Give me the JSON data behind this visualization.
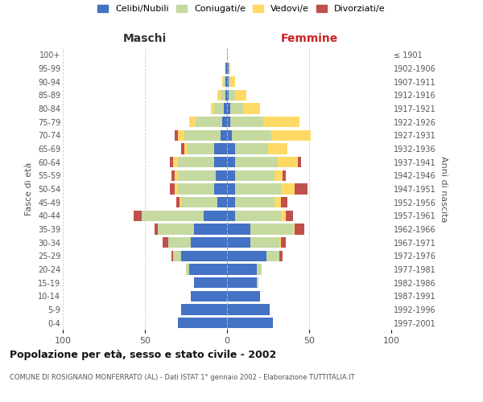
{
  "age_groups": [
    "0-4",
    "5-9",
    "10-14",
    "15-19",
    "20-24",
    "25-29",
    "30-34",
    "35-39",
    "40-44",
    "45-49",
    "50-54",
    "55-59",
    "60-64",
    "65-69",
    "70-74",
    "75-79",
    "80-84",
    "85-89",
    "90-94",
    "95-99",
    "100+"
  ],
  "birth_years": [
    "1997-2001",
    "1992-1996",
    "1987-1991",
    "1982-1986",
    "1977-1981",
    "1972-1976",
    "1967-1971",
    "1962-1966",
    "1957-1961",
    "1952-1956",
    "1947-1951",
    "1942-1946",
    "1937-1941",
    "1932-1936",
    "1927-1931",
    "1922-1926",
    "1917-1921",
    "1912-1916",
    "1907-1911",
    "1902-1906",
    "≤ 1901"
  ],
  "maschi": {
    "celibi": [
      30,
      28,
      22,
      20,
      23,
      28,
      22,
      20,
      14,
      6,
      8,
      7,
      8,
      8,
      4,
      3,
      2,
      1,
      1,
      1,
      0
    ],
    "coniugati": [
      0,
      0,
      0,
      0,
      2,
      5,
      14,
      22,
      38,
      22,
      22,
      23,
      22,
      16,
      22,
      16,
      6,
      3,
      1,
      0,
      0
    ],
    "vedovi": [
      0,
      0,
      0,
      0,
      0,
      0,
      0,
      0,
      0,
      1,
      2,
      2,
      3,
      2,
      4,
      4,
      2,
      2,
      1,
      0,
      0
    ],
    "divorziati": [
      0,
      0,
      0,
      0,
      0,
      1,
      3,
      2,
      5,
      2,
      3,
      2,
      2,
      2,
      2,
      0,
      0,
      0,
      0,
      0,
      0
    ]
  },
  "femmine": {
    "nubili": [
      28,
      26,
      20,
      18,
      18,
      24,
      14,
      14,
      5,
      5,
      5,
      5,
      5,
      5,
      3,
      2,
      2,
      1,
      1,
      1,
      0
    ],
    "coniugate": [
      0,
      0,
      0,
      1,
      3,
      8,
      18,
      26,
      28,
      24,
      28,
      24,
      26,
      20,
      24,
      20,
      8,
      4,
      1,
      0,
      0
    ],
    "vedove": [
      0,
      0,
      0,
      0,
      0,
      0,
      1,
      1,
      3,
      4,
      8,
      5,
      12,
      12,
      24,
      22,
      10,
      7,
      3,
      1,
      0
    ],
    "divorziate": [
      0,
      0,
      0,
      0,
      0,
      2,
      3,
      6,
      4,
      4,
      8,
      2,
      2,
      0,
      0,
      0,
      0,
      0,
      0,
      0,
      0
    ]
  },
  "colors": {
    "celibi_nubili": "#4472c4",
    "coniugati_e": "#c5d9a0",
    "vedovi_e": "#ffd966",
    "divorziati_e": "#c0504d"
  },
  "xlim": 100,
  "title": "Popolazione per età, sesso e stato civile - 2002",
  "subtitle": "COMUNE DI ROSIGNANO MONFERRATO (AL) - Dati ISTAT 1° gennaio 2002 - Elaborazione TUTTITALIA.IT",
  "xlabel_left": "Maschi",
  "xlabel_right": "Femmine",
  "ylabel_left": "Fasce di età",
  "ylabel_right": "Anni di nascita",
  "legend_labels": [
    "Celibi/Nubili",
    "Coniugati/e",
    "Vedovi/e",
    "Divorziati/e"
  ],
  "bg_color": "#ffffff",
  "grid_color": "#cccccc"
}
